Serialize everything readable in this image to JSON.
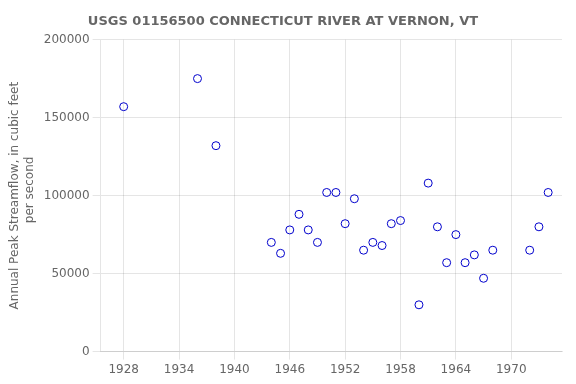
{
  "chart_data": {
    "type": "scatter",
    "title": "USGS 01156500 CONNECTICUT RIVER AT VERNON, VT",
    "ylabel": [
      "Annual Peak Streamflow, in cubic feet",
      "   per second"
    ],
    "x": [
      1928,
      1936,
      1938,
      1944,
      1945,
      1946,
      1947,
      1948,
      1949,
      1950,
      1951,
      1952,
      1953,
      1954,
      1955,
      1956,
      1957,
      1958,
      1960,
      1961,
      1962,
      1963,
      1964,
      1965,
      1966,
      1967,
      1968,
      1972,
      1973,
      1974
    ],
    "values": [
      157000,
      175000,
      132000,
      70000,
      63000,
      78000,
      88000,
      78000,
      70000,
      102000,
      102000,
      82000,
      98000,
      65000,
      70000,
      68000,
      82000,
      84000,
      30000,
      108000,
      80000,
      57000,
      75000,
      57000,
      62000,
      47000,
      65000,
      65000,
      80000,
      102000
    ],
    "color": "#0000CC",
    "marker": "circle",
    "xlim": [
      1925.5,
      1975.5
    ],
    "ylim": [
      0,
      200000
    ],
    "xticks": [
      1928,
      1934,
      1940,
      1946,
      1952,
      1958,
      1964,
      1970
    ],
    "yticks": [
      0,
      50000,
      100000,
      150000,
      200000
    ],
    "grid": true
  }
}
